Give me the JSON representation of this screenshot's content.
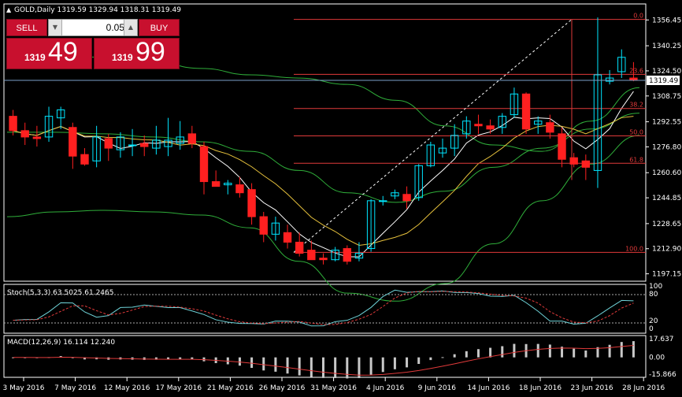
{
  "chart_header": "GOLD,Daily  1319.59 1329.94 1318.31 1319.49",
  "trade_panel": {
    "sell_label": "SELL",
    "buy_label": "BUY",
    "lot_value": "0.05",
    "sell_price_small": "1319",
    "sell_price_big": "49",
    "buy_price_small": "1319",
    "buy_price_big": "99"
  },
  "current_price": "1319.49",
  "price_axis": [
    "1356.45",
    "1340.25",
    "1324.50",
    "1308.75",
    "1292.55",
    "1276.80",
    "1260.60",
    "1244.85",
    "1228.65",
    "1212.90",
    "1197.15"
  ],
  "fib_levels": [
    {
      "label": "0.0",
      "price": 1356.8
    },
    {
      "label": "23.6",
      "price": 1322.3
    },
    {
      "label": "38.2",
      "price": 1300.9
    },
    {
      "label": "50.0",
      "price": 1283.7
    },
    {
      "label": "61.8",
      "price": 1266.5
    },
    {
      "label": "100.0",
      "price": 1210.6
    }
  ],
  "stoch_header": "Stoch(5,3,3) 63.5025 61.2465",
  "stoch_axis": [
    "100",
    "80",
    "20",
    "0"
  ],
  "macd_header": "MACD(12,26,9) 16.114 12.240",
  "macd_axis": [
    "17.637",
    "0.00",
    "-15.866"
  ],
  "date_axis": [
    "3 May 2016",
    "7 May 2016",
    "12 May 2016",
    "17 May 2016",
    "21 May 2016",
    "26 May 2016",
    "31 May 2016",
    "4 Jun 2016",
    "9 Jun 2016",
    "14 Jun 2016",
    "18 Jun 2016",
    "23 Jun 2016",
    "28 Jun 2016"
  ],
  "colors": {
    "bull": "#00e5ff",
    "bear": "#ff2020",
    "grid": "#ffffff",
    "fib": "#e03a3a",
    "axis": "#ffffff",
    "ma_fast": "#ffffff",
    "ma_mid": "#e6c13c",
    "bands": "#2fae3a"
  },
  "chart_data": {
    "type": "candlestick",
    "symbol": "GOLD",
    "timeframe": "Daily",
    "ohlc": [
      [
        1296,
        1300,
        1284,
        1287
      ],
      [
        1287,
        1292,
        1278,
        1283
      ],
      [
        1283,
        1290,
        1277,
        1282
      ],
      [
        1283,
        1302,
        1280,
        1296
      ],
      [
        1295,
        1302,
        1288,
        1300
      ],
      [
        1289,
        1292,
        1263,
        1271
      ],
      [
        1272,
        1276,
        1265,
        1266
      ],
      [
        1268,
        1290,
        1264,
        1283
      ],
      [
        1282,
        1285,
        1268,
        1276
      ],
      [
        1275,
        1286,
        1270,
        1283
      ],
      [
        1278,
        1288,
        1271,
        1278
      ],
      [
        1279,
        1284,
        1271,
        1277
      ],
      [
        1276,
        1290,
        1272,
        1281
      ],
      [
        1277,
        1295,
        1271,
        1281
      ],
      [
        1279,
        1293,
        1275,
        1283
      ],
      [
        1285,
        1290,
        1276,
        1279
      ],
      [
        1277,
        1280,
        1247,
        1255
      ],
      [
        1255,
        1262,
        1252,
        1252
      ],
      [
        1253,
        1256,
        1247,
        1254
      ],
      [
        1253,
        1258,
        1245,
        1248
      ],
      [
        1250,
        1254,
        1228,
        1233
      ],
      [
        1233,
        1236,
        1217,
        1222
      ],
      [
        1222,
        1233,
        1218,
        1229
      ],
      [
        1223,
        1228,
        1213,
        1217
      ],
      [
        1217,
        1223,
        1208,
        1210
      ],
      [
        1212,
        1218,
        1206,
        1206
      ],
      [
        1207,
        1210,
        1203,
        1206
      ],
      [
        1206,
        1214,
        1205,
        1212
      ],
      [
        1213,
        1215,
        1203,
        1205
      ],
      [
        1207,
        1217,
        1205,
        1210
      ],
      [
        1213,
        1244,
        1211,
        1243
      ],
      [
        1243,
        1246,
        1240,
        1243
      ],
      [
        1246,
        1250,
        1244,
        1248
      ],
      [
        1247,
        1252,
        1238,
        1243
      ],
      [
        1245,
        1266,
        1243,
        1265
      ],
      [
        1265,
        1280,
        1264,
        1278
      ],
      [
        1273,
        1282,
        1270,
        1276
      ],
      [
        1276,
        1291,
        1271,
        1284
      ],
      [
        1285,
        1296,
        1282,
        1293
      ],
      [
        1291,
        1297,
        1285,
        1290
      ],
      [
        1290,
        1294,
        1285,
        1288
      ],
      [
        1289,
        1298,
        1285,
        1296
      ],
      [
        1297,
        1314,
        1295,
        1310
      ],
      [
        1310,
        1311,
        1285,
        1288
      ],
      [
        1291,
        1296,
        1285,
        1293
      ],
      [
        1292,
        1297,
        1282,
        1286
      ],
      [
        1285,
        1289,
        1264,
        1269
      ],
      [
        1270,
        1273,
        1264,
        1266
      ],
      [
        1268,
        1272,
        1256,
        1264
      ],
      [
        1262,
        1358,
        1251,
        1322
      ],
      [
        1318,
        1325,
        1316,
        1320
      ],
      [
        1324,
        1338,
        1320,
        1333
      ],
      [
        1320,
        1330,
        1318,
        1319
      ]
    ],
    "ylim": [
      1193,
      1366
    ],
    "bands": {
      "upper": [
        1336,
        1334,
        1333,
        1330,
        1326,
        1322,
        1320,
        1316,
        1306,
        1290,
        1278,
        1274,
        1293,
        1314
      ],
      "middle": [
        1286,
        1286,
        1285,
        1283,
        1280,
        1274,
        1262,
        1248,
        1242,
        1249,
        1264,
        1276,
        1288,
        1298
      ],
      "lower": [
        1233,
        1236,
        1237,
        1236,
        1234,
        1226,
        1205,
        1185,
        1180,
        1191,
        1216,
        1243,
        1266,
        1284
      ]
    }
  }
}
